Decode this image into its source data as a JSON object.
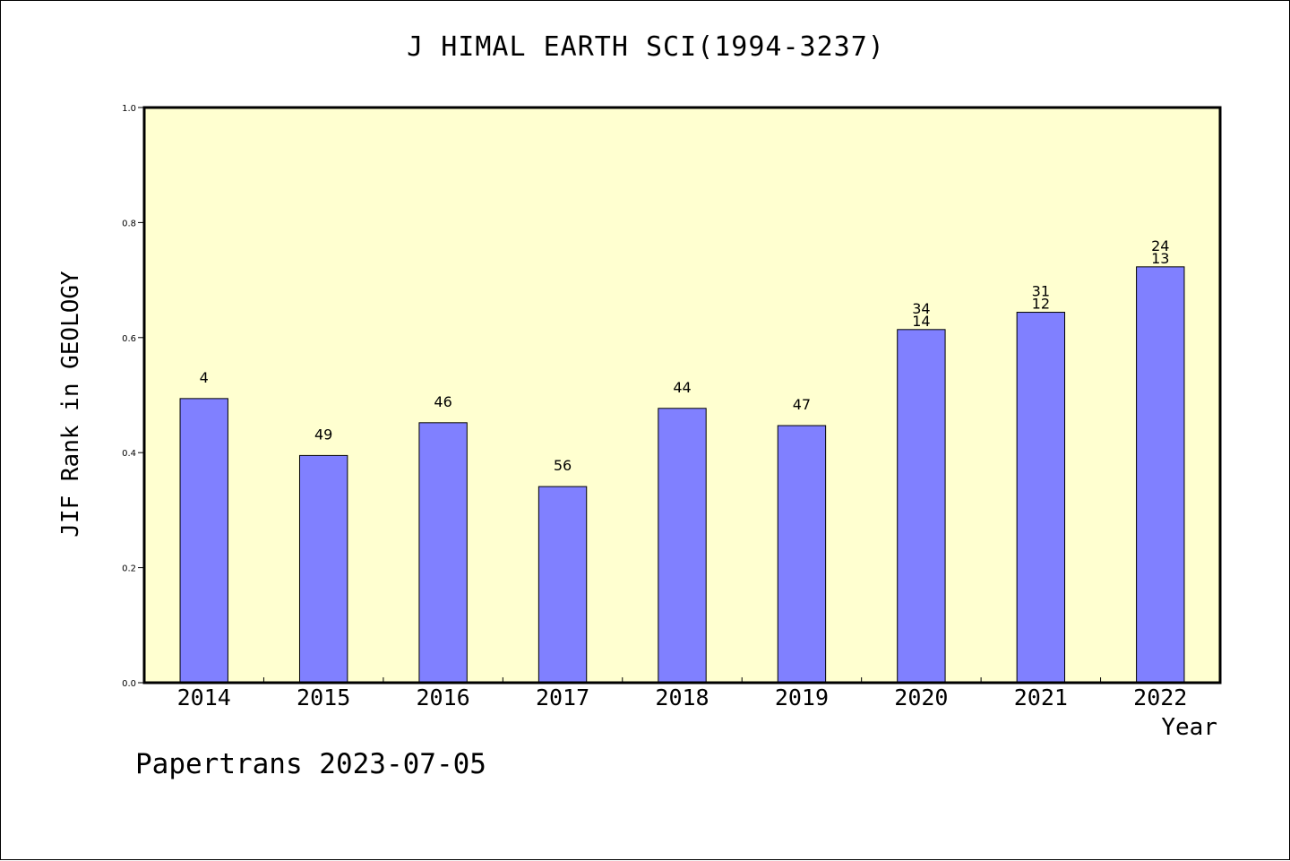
{
  "colors": {
    "plot_background": "#FFFFD0",
    "bar_fill": "#8080FF",
    "bar_stroke": "#000000",
    "axis": "#000000"
  },
  "footer": {
    "note": "Papertrans 2023-07-05"
  },
  "chart_data": {
    "type": "bar",
    "title": "J HIMAL EARTH SCI(1994-3237)",
    "xlabel": "Year",
    "ylabel": "JIF Rank in GEOLOGY",
    "ylim": [
      0,
      1.0
    ],
    "yticks": [
      "0.0",
      "0.2",
      "0.4",
      "0.6",
      "0.8",
      "1.0"
    ],
    "grid": false,
    "categories": [
      "2014",
      "2015",
      "2016",
      "2017",
      "2018",
      "2019",
      "2020",
      "2021",
      "2022"
    ],
    "values": [
      0.494,
      0.395,
      0.452,
      0.341,
      0.477,
      0.447,
      0.614,
      0.644,
      0.723
    ],
    "bar_labels": [
      [
        "4"
      ],
      [
        "49"
      ],
      [
        "46"
      ],
      [
        "56"
      ],
      [
        "44"
      ],
      [
        "47"
      ],
      [
        "34",
        "14"
      ],
      [
        "31",
        "12"
      ],
      [
        "24",
        "13"
      ]
    ]
  }
}
